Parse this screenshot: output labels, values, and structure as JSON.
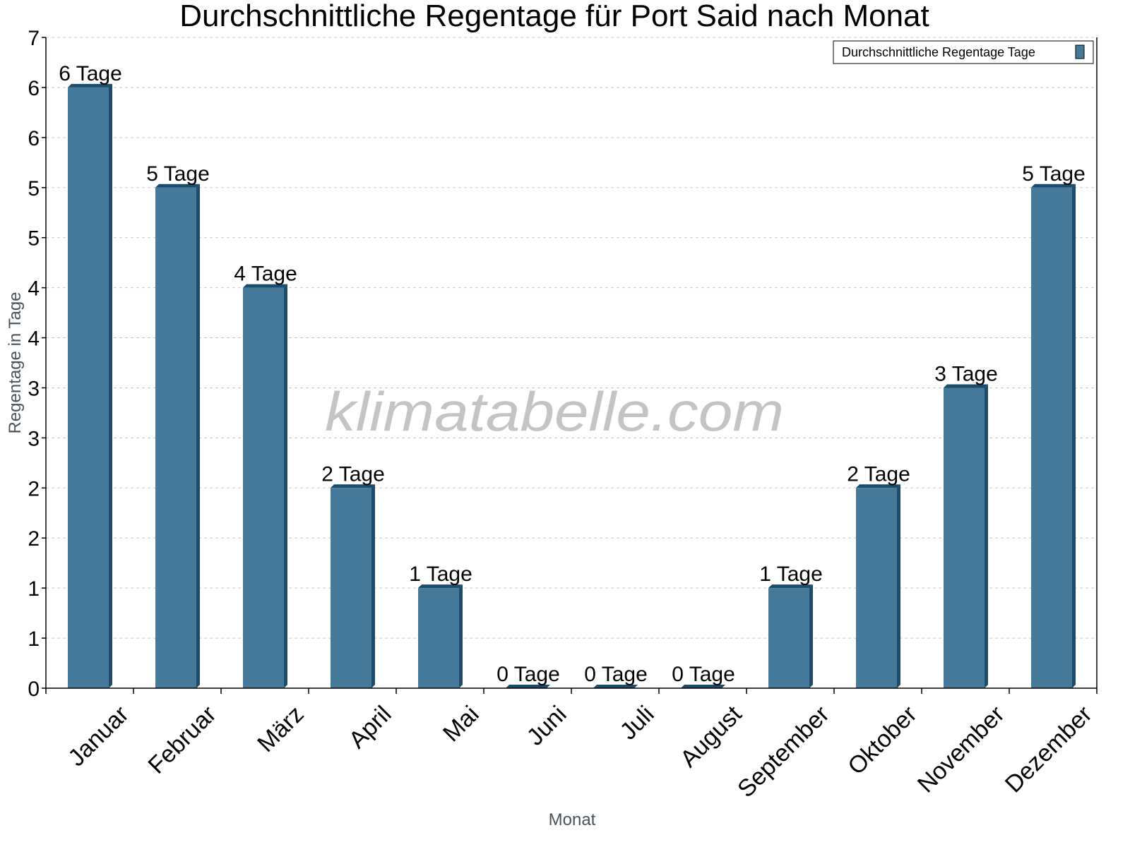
{
  "chart_data": {
    "type": "bar",
    "title": "Durchschnittliche Regentage für Port Said nach Monat",
    "xlabel": "Monat",
    "ylabel": "Regentage in Tage",
    "categories": [
      "Januar",
      "Februar",
      "März",
      "April",
      "Mai",
      "Juni",
      "Juli",
      "August",
      "September",
      "Oktober",
      "November",
      "Dezember"
    ],
    "series": [
      {
        "name": "Durchschnittliche Regentage Tage",
        "values": [
          6,
          5,
          4,
          2,
          1,
          0,
          0,
          0,
          1,
          2,
          3,
          5
        ],
        "labels": [
          "6 Tage",
          "5 Tage",
          "4 Tage",
          "2 Tage",
          "1 Tage",
          "0 Tage",
          "0 Tage",
          "0 Tage",
          "1 Tage",
          "2 Tage",
          "3 Tage",
          "5 Tage"
        ],
        "color": "#467a9b",
        "side_color": "#1b4c6b"
      }
    ],
    "ylim": [
      0,
      6.5
    ],
    "ytick_values": [
      0,
      0.5,
      1,
      1.5,
      2,
      2.5,
      3,
      3.5,
      4,
      4.5,
      5,
      5.5,
      6,
      6.5
    ],
    "ytick_labels": [
      "0",
      "1",
      "1",
      "2",
      "2",
      "3",
      "3",
      "4",
      "4",
      "5",
      "5",
      "6",
      "6",
      "7"
    ],
    "grid": true,
    "legend_position": "top-right",
    "watermark": "klimatabelle.com"
  }
}
